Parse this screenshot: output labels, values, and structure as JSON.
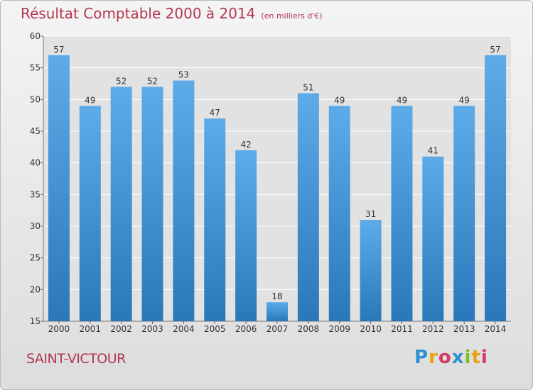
{
  "chart_data": {
    "type": "bar",
    "title": "Résultat Comptable 2000 à 2014",
    "unit_label": "(en milliers d'€)",
    "categories": [
      "2000",
      "2001",
      "2002",
      "2003",
      "2004",
      "2005",
      "2006",
      "2007",
      "2008",
      "2009",
      "2010",
      "2011",
      "2012",
      "2013",
      "2014"
    ],
    "values": [
      57,
      49,
      52,
      52,
      53,
      47,
      42,
      18,
      51,
      49,
      31,
      49,
      41,
      49,
      57
    ],
    "ylim": [
      15,
      60
    ],
    "yticks": [
      15,
      20,
      25,
      30,
      35,
      40,
      45,
      50,
      55,
      60
    ],
    "grid": true,
    "bar_color": "#3f93d6",
    "grid_color": "#ffffff"
  },
  "footer": {
    "commune": "SAINT-VICTOUR",
    "logo_text": "Proxiti",
    "logo_colors": [
      "#2f8fd1",
      "#e8a312",
      "#d63a63",
      "#2f8fd1",
      "#7fbf2f",
      "#e8a312",
      "#d63a63"
    ]
  },
  "colors": {
    "title": "#b2384f",
    "axis_text": "#333333"
  }
}
